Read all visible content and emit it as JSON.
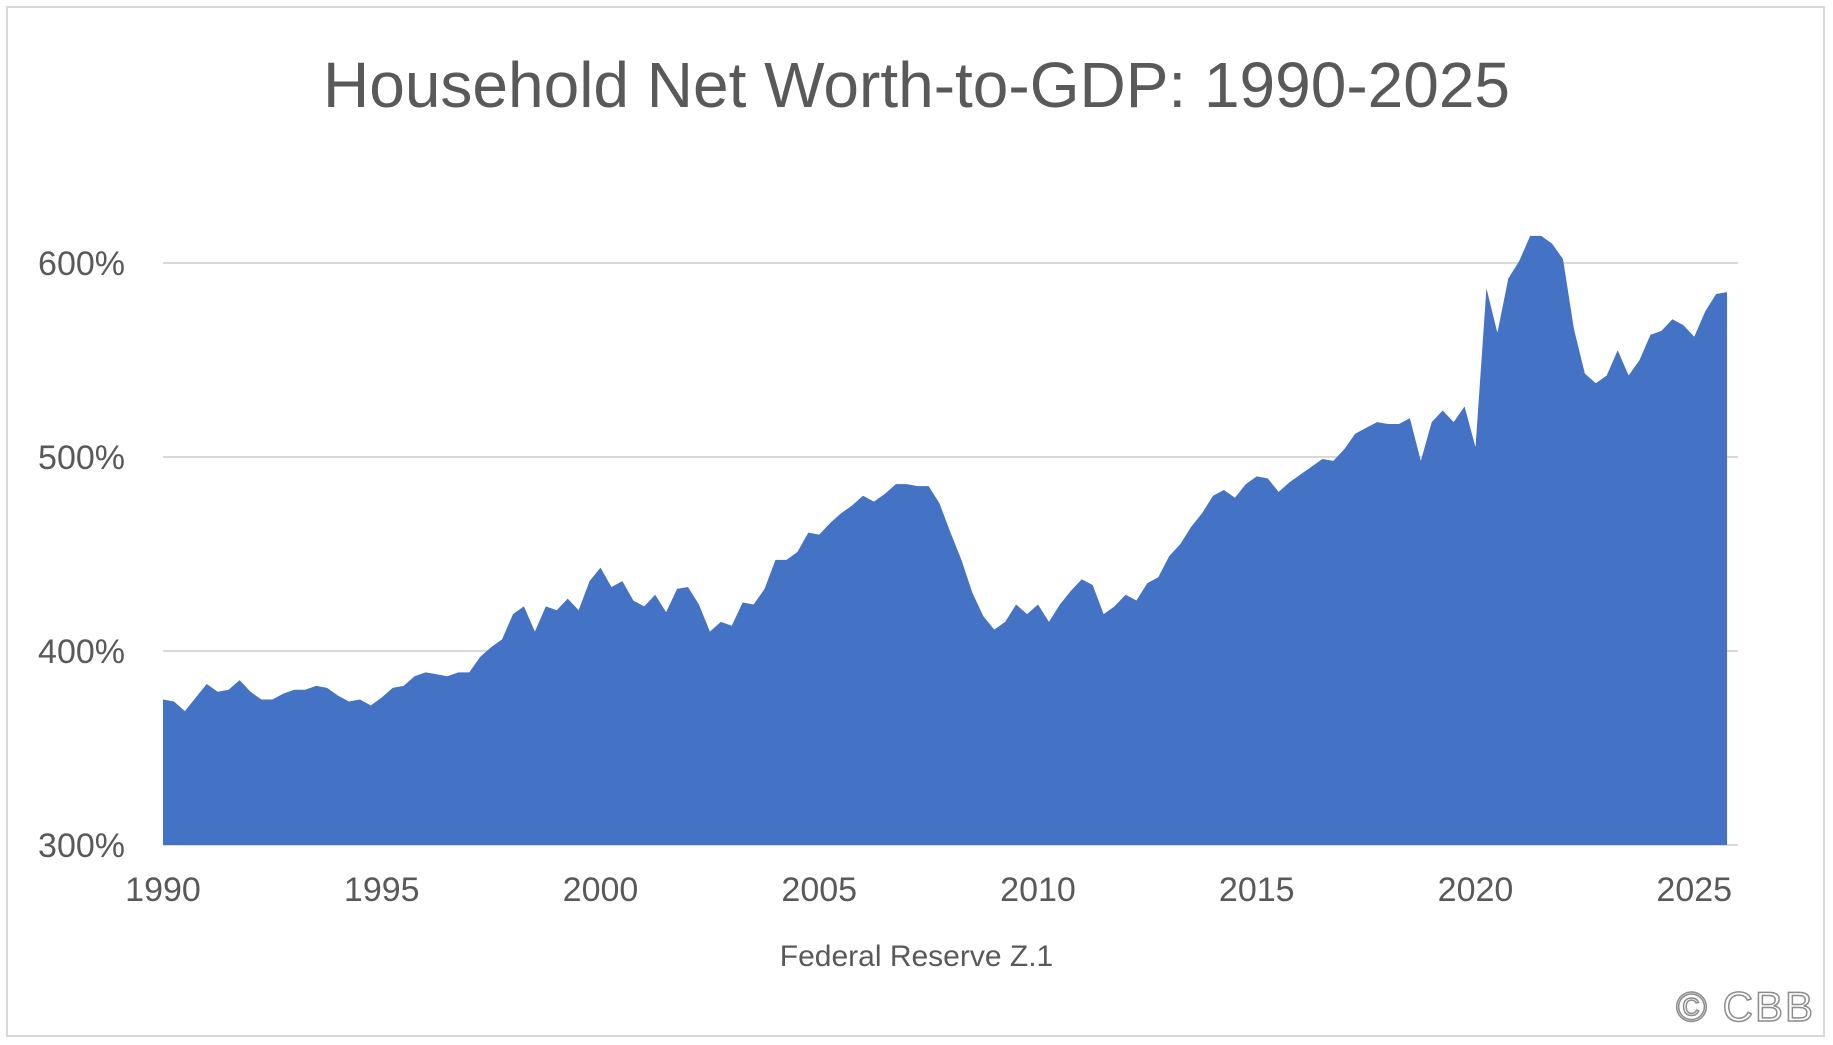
{
  "copyright": "© CBB",
  "chart_data": {
    "type": "area",
    "title": "Household Net Worth-to-GDP: 1990-2025",
    "source": "Federal Reserve Z.1",
    "xlabel": "",
    "ylabel": "",
    "xlim": [
      1990,
      2026
    ],
    "ylim": [
      300,
      600
    ],
    "x_ticks": [
      1990,
      1995,
      2000,
      2005,
      2010,
      2015,
      2020,
      2025
    ],
    "y_ticks": [
      300,
      400,
      500,
      600
    ],
    "y_tick_labels": [
      "300%",
      "400%",
      "500%",
      "600%"
    ],
    "x_tick_labels": [
      "1990",
      "1995",
      "2000",
      "2005",
      "2010",
      "2015",
      "2020",
      "2025"
    ],
    "grid": "horizontal",
    "legend": "none",
    "color": "#4472c4",
    "series": [
      {
        "x": [
          1990.0,
          1990.25,
          1990.5,
          1990.75,
          1991.0,
          1991.25,
          1991.5,
          1991.75,
          1992.0,
          1992.25,
          1992.5,
          1992.75,
          1993.0,
          1993.25,
          1993.5,
          1993.75,
          1994.0,
          1994.25,
          1994.5,
          1994.75,
          1995.0,
          1995.25,
          1995.5,
          1995.75,
          1996.0,
          1996.25,
          1996.5,
          1996.75,
          1997.0,
          1997.25,
          1997.5,
          1997.75,
          1998.0,
          1998.25,
          1998.5,
          1998.75,
          1999.0,
          1999.25,
          1999.5,
          1999.75,
          2000.0,
          2000.25,
          2000.5,
          2000.75,
          2001.0,
          2001.25,
          2001.5,
          2001.75,
          2002.0,
          2002.25,
          2002.5,
          2002.75,
          2003.0,
          2003.25,
          2003.5,
          2003.75,
          2004.0,
          2004.25,
          2004.5,
          2004.75,
          2005.0,
          2005.25,
          2005.5,
          2005.75,
          2006.0,
          2006.25,
          2006.5,
          2006.75,
          2007.0,
          2007.25,
          2007.5,
          2007.75,
          2008.0,
          2008.25,
          2008.5,
          2008.75,
          2009.0,
          2009.25,
          2009.5,
          2009.75,
          2010.0,
          2010.25,
          2010.5,
          2010.75,
          2011.0,
          2011.25,
          2011.5,
          2011.75,
          2012.0,
          2012.25,
          2012.5,
          2012.75,
          2013.0,
          2013.25,
          2013.5,
          2013.75,
          2014.0,
          2014.25,
          2014.5,
          2014.75,
          2015.0,
          2015.25,
          2015.5,
          2015.75,
          2016.0,
          2016.25,
          2016.5,
          2016.75,
          2017.0,
          2017.25,
          2017.5,
          2017.75,
          2018.0,
          2018.25,
          2018.5,
          2018.75,
          2019.0,
          2019.25,
          2019.5,
          2019.75,
          2020.0,
          2020.25,
          2020.5,
          2020.75,
          2021.0,
          2021.25,
          2021.5,
          2021.75,
          2022.0,
          2022.25,
          2022.5,
          2022.75,
          2023.0,
          2023.25,
          2023.5,
          2023.75,
          2024.0,
          2024.25,
          2024.5,
          2024.75,
          2025.0,
          2025.25,
          2025.5,
          2025.75
        ],
        "y": [
          375,
          374,
          369,
          376,
          383,
          379,
          380,
          385,
          379,
          375,
          375,
          378,
          380,
          380,
          382,
          381,
          377,
          374,
          375,
          372,
          376,
          381,
          382,
          387,
          389,
          388,
          387,
          389,
          389,
          397,
          402,
          406,
          419,
          423,
          410,
          423,
          421,
          427,
          421,
          436,
          443,
          433,
          436,
          426,
          423,
          429,
          420,
          432,
          433,
          424,
          410,
          415,
          413,
          425,
          424,
          432,
          447,
          447,
          451,
          461,
          460,
          466,
          471,
          475,
          480,
          477,
          481,
          486,
          486,
          485,
          485,
          476,
          461,
          447,
          430,
          418,
          411,
          415,
          424,
          419,
          424,
          415,
          424,
          431,
          437,
          434,
          419,
          423,
          429,
          426,
          435,
          438,
          449,
          455,
          464,
          471,
          480,
          483,
          479,
          486,
          490,
          489,
          482,
          487,
          491,
          495,
          499,
          498,
          504,
          512,
          515,
          518,
          517,
          517,
          520,
          498,
          518,
          524,
          518,
          526,
          505,
          587,
          564,
          592,
          601,
          614,
          614,
          610,
          602,
          566,
          543,
          538,
          542,
          555,
          542,
          550,
          563,
          565,
          571,
          568,
          562,
          575,
          584,
          585
        ]
      }
    ]
  }
}
